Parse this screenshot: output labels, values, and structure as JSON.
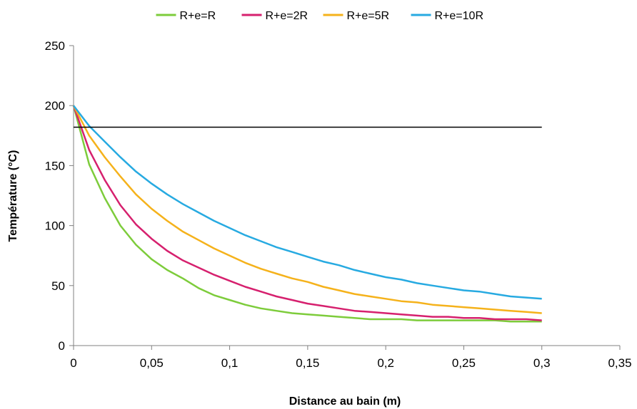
{
  "chart_data": {
    "type": "line",
    "title": "",
    "xlabel": "Distance au bain (m)",
    "ylabel": "Température (°C)",
    "xlim": [
      0,
      0.35
    ],
    "ylim": [
      0,
      250
    ],
    "x_ticks": [
      "0",
      "0,05",
      "0,1",
      "0,15",
      "0,2",
      "0,25",
      "0,3",
      "0,35"
    ],
    "y_ticks": [
      "0",
      "50",
      "100",
      "150",
      "200",
      "250"
    ],
    "grid": false,
    "legend_position": "top",
    "x": [
      0,
      0.01,
      0.02,
      0.03,
      0.04,
      0.05,
      0.06,
      0.07,
      0.08,
      0.09,
      0.1,
      0.11,
      0.12,
      0.13,
      0.14,
      0.15,
      0.16,
      0.17,
      0.18,
      0.19,
      0.2,
      0.21,
      0.22,
      0.23,
      0.24,
      0.25,
      0.26,
      0.27,
      0.28,
      0.29,
      0.3
    ],
    "series": [
      {
        "name": "R+e=R",
        "color": "#7dcc3b",
        "values": [
          200,
          151,
          123,
          100,
          84,
          72,
          63,
          56,
          48,
          42,
          38,
          34,
          31,
          29,
          27,
          26,
          25,
          24,
          23,
          22,
          22,
          22,
          21,
          21,
          21,
          21,
          21,
          21,
          20,
          20,
          20
        ]
      },
      {
        "name": "R+e=2R",
        "color": "#d6206e",
        "values": [
          200,
          163,
          138,
          117,
          101,
          89,
          79,
          71,
          65,
          59,
          54,
          49,
          45,
          41,
          38,
          35,
          33,
          31,
          29,
          28,
          27,
          26,
          25,
          24,
          24,
          23,
          23,
          22,
          22,
          22,
          21
        ]
      },
      {
        "name": "R+e=5R",
        "color": "#f5b21b",
        "values": [
          200,
          175,
          157,
          141,
          126,
          114,
          104,
          95,
          88,
          81,
          75,
          69,
          64,
          60,
          56,
          53,
          49,
          46,
          43,
          41,
          39,
          37,
          36,
          34,
          33,
          32,
          31,
          30,
          29,
          28,
          27
        ]
      },
      {
        "name": "R+e=10R",
        "color": "#27aae1",
        "values": [
          200,
          183,
          170,
          157,
          145,
          135,
          126,
          118,
          111,
          104,
          98,
          92,
          87,
          82,
          78,
          74,
          70,
          67,
          63,
          60,
          57,
          55,
          52,
          50,
          48,
          46,
          45,
          43,
          41,
          40,
          39
        ]
      },
      {
        "name": "",
        "color": "#000000",
        "x": [
          0,
          0.3
        ],
        "values": [
          182,
          182
        ]
      }
    ]
  }
}
